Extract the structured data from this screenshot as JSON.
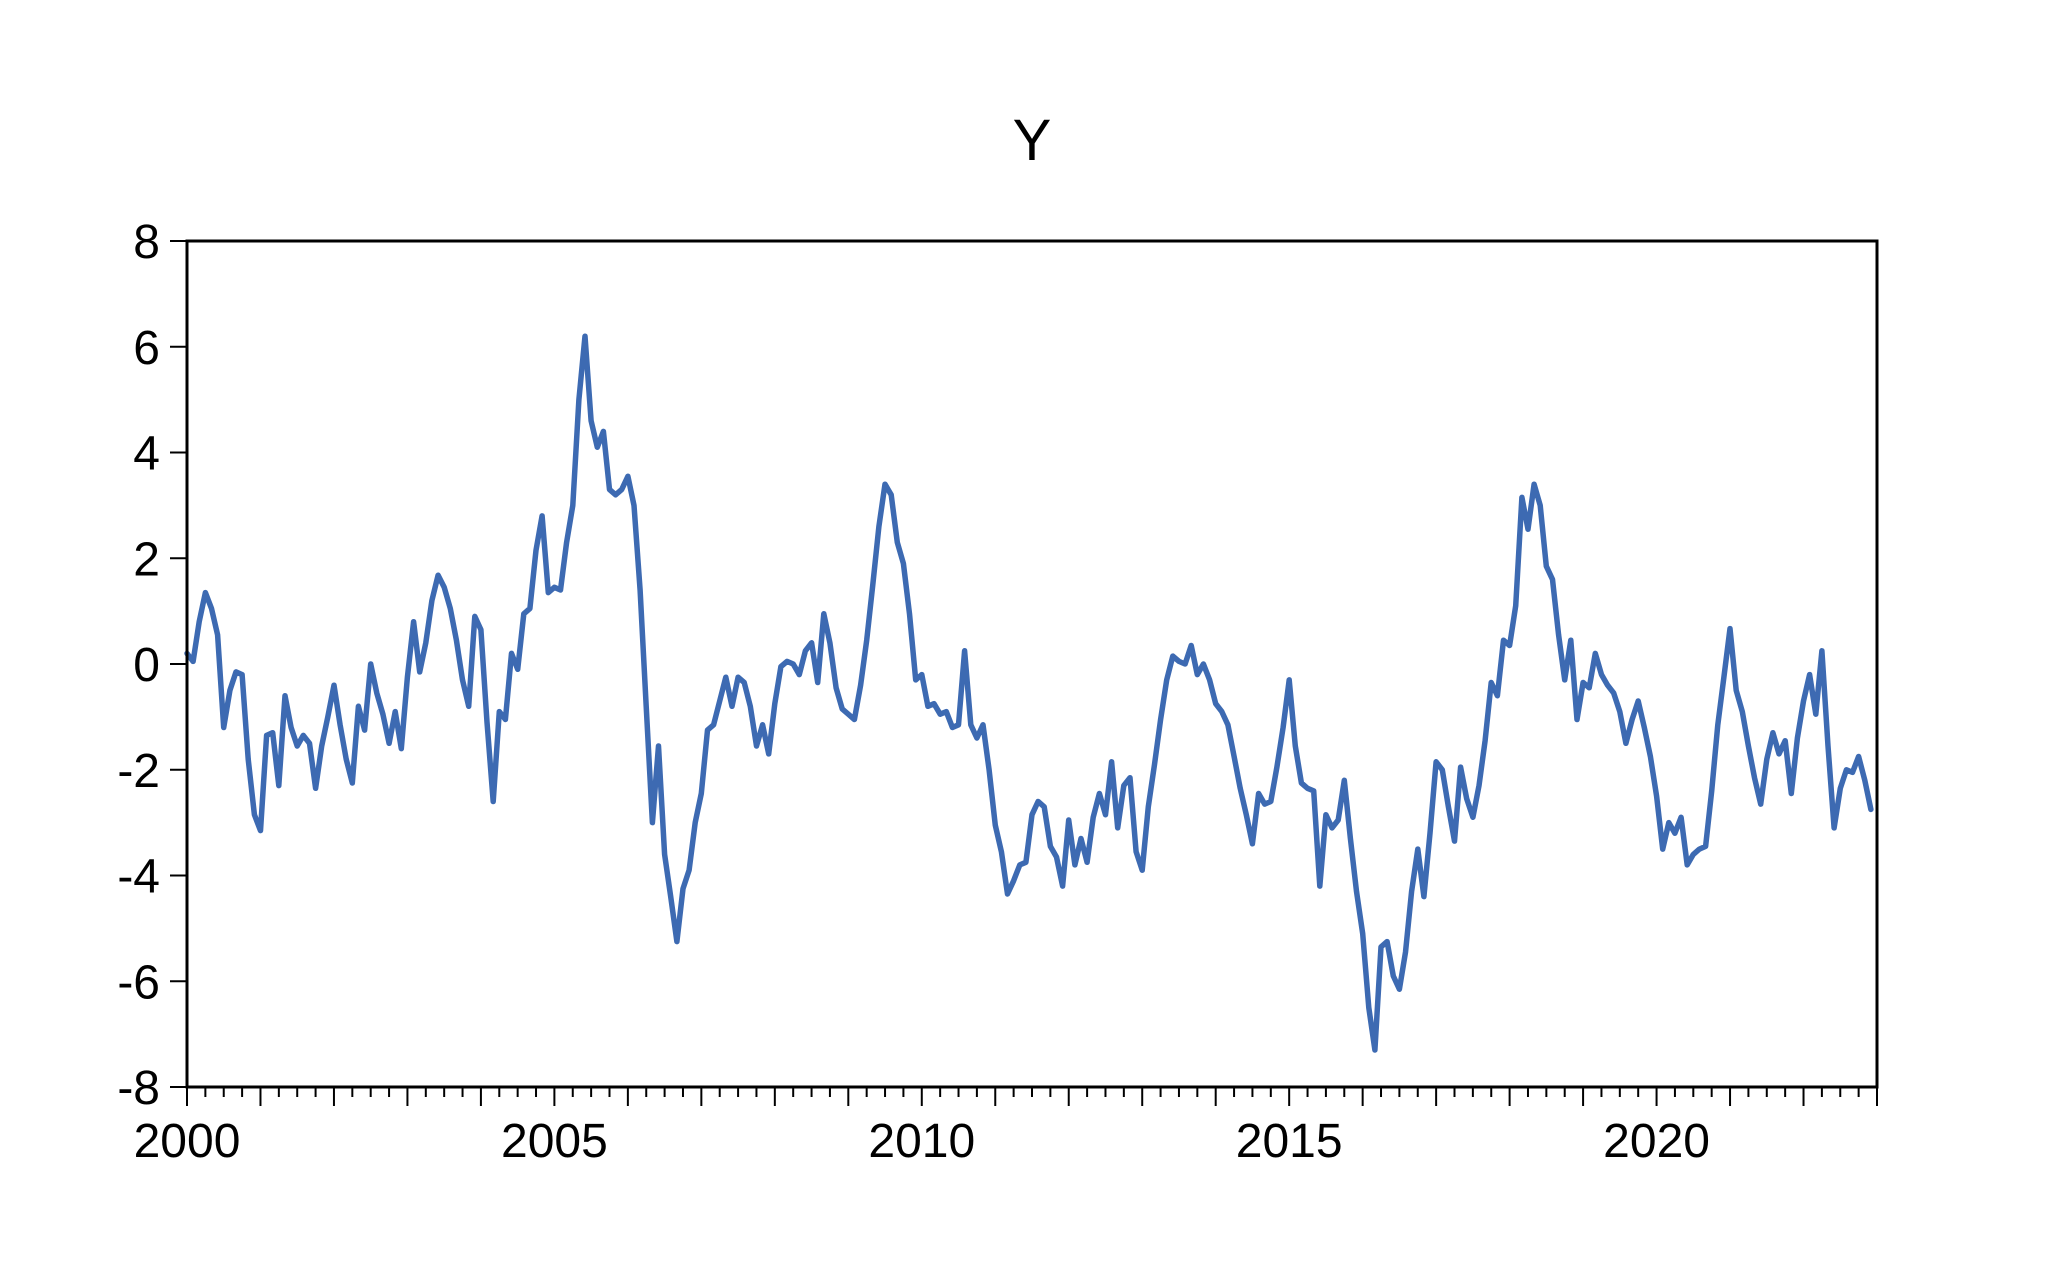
{
  "title": "Y",
  "chart_data": {
    "type": "line",
    "title": "Y",
    "series": [
      {
        "name": "Y",
        "color": "#3D6AB2",
        "values": [
          0.2,
          0.05,
          0.8,
          1.35,
          1.05,
          0.55,
          -1.2,
          -0.5,
          -0.15,
          -0.2,
          -1.8,
          -2.85,
          -3.15,
          -1.35,
          -1.3,
          -2.3,
          -0.6,
          -1.2,
          -1.55,
          -1.35,
          -1.5,
          -2.35,
          -1.55,
          -1.0,
          -0.4,
          -1.15,
          -1.8,
          -2.25,
          -0.8,
          -1.25,
          0.0,
          -0.55,
          -0.95,
          -1.5,
          -0.9,
          -1.6,
          -0.25,
          0.8,
          -0.15,
          0.4,
          1.2,
          1.68,
          1.45,
          1.05,
          0.45,
          -0.3,
          -0.8,
          0.9,
          0.65,
          -1.1,
          -2.6,
          -0.9,
          -1.05,
          0.2,
          -0.1,
          0.95,
          1.05,
          2.15,
          2.8,
          1.35,
          1.45,
          1.4,
          2.3,
          3.0,
          5.0,
          6.2,
          4.6,
          4.1,
          4.4,
          3.3,
          3.2,
          3.3,
          3.55,
          3.0,
          1.4,
          -0.8,
          -3.0,
          -1.55,
          -3.6,
          -4.4,
          -5.25,
          -4.25,
          -3.9,
          -3.0,
          -2.45,
          -1.25,
          -1.15,
          -0.7,
          -0.25,
          -0.8,
          -0.25,
          -0.35,
          -0.8,
          -1.55,
          -1.15,
          -1.7,
          -0.75,
          -0.05,
          0.05,
          0.0,
          -0.2,
          0.25,
          0.4,
          -0.35,
          0.95,
          0.4,
          -0.45,
          -0.85,
          -0.95,
          -1.05,
          -0.4,
          0.45,
          1.5,
          2.6,
          3.4,
          3.2,
          2.3,
          1.9,
          0.95,
          -0.3,
          -0.2,
          -0.8,
          -0.75,
          -0.95,
          -0.9,
          -1.2,
          -1.15,
          0.25,
          -1.15,
          -1.4,
          -1.15,
          -2.0,
          -3.05,
          -3.55,
          -4.35,
          -4.1,
          -3.8,
          -3.75,
          -2.85,
          -2.6,
          -2.7,
          -3.45,
          -3.65,
          -4.2,
          -2.95,
          -3.8,
          -3.3,
          -3.75,
          -2.9,
          -2.45,
          -2.85,
          -1.85,
          -3.1,
          -2.3,
          -2.15,
          -3.55,
          -3.9,
          -2.7,
          -1.9,
          -1.05,
          -0.3,
          0.15,
          0.05,
          0.0,
          0.35,
          -0.2,
          0.0,
          -0.3,
          -0.75,
          -0.9,
          -1.15,
          -1.75,
          -2.35,
          -2.85,
          -3.4,
          -2.45,
          -2.65,
          -2.6,
          -1.95,
          -1.2,
          -0.3,
          -1.55,
          -2.25,
          -2.35,
          -2.4,
          -4.2,
          -2.85,
          -3.1,
          -2.95,
          -2.2,
          -3.3,
          -4.3,
          -5.1,
          -6.5,
          -7.3,
          -5.35,
          -5.25,
          -5.9,
          -6.15,
          -5.45,
          -4.3,
          -3.5,
          -4.4,
          -3.2,
          -1.85,
          -2.0,
          -2.7,
          -3.35,
          -1.95,
          -2.55,
          -2.9,
          -2.3,
          -1.45,
          -0.35,
          -0.6,
          0.45,
          0.35,
          1.1,
          3.15,
          2.55,
          3.4,
          3.0,
          1.85,
          1.6,
          0.55,
          -0.3,
          0.45,
          -1.05,
          -0.35,
          -0.45,
          0.2,
          -0.2,
          -0.4,
          -0.55,
          -0.9,
          -1.5,
          -1.05,
          -0.7,
          -1.2,
          -1.75,
          -2.5,
          -3.5,
          -3.0,
          -3.2,
          -2.9,
          -3.8,
          -3.6,
          -3.5,
          -3.45,
          -2.4,
          -1.15,
          -0.25,
          0.67,
          -0.5,
          -0.9,
          -1.55,
          -2.15,
          -2.65,
          -1.8,
          -1.3,
          -1.7,
          -1.45,
          -2.45,
          -1.4,
          -0.7,
          -0.2,
          -0.95,
          0.25,
          -1.55,
          -3.1,
          -2.35,
          -2.0,
          -2.05,
          -1.75,
          -2.2,
          -2.75
        ]
      }
    ],
    "frequency": "monthly",
    "x_start_year": 2000,
    "x_end_year": 2023,
    "x_tick_years": [
      2000,
      2005,
      2010,
      2015,
      2020
    ],
    "x_tick_labels": [
      "2000",
      "2005",
      "2010",
      "2015",
      "2020"
    ],
    "y_ticks": [
      8,
      6,
      4,
      2,
      0,
      -2,
      -4,
      -6,
      -8
    ],
    "y_tick_labels": [
      "8",
      "6",
      "4",
      "2",
      "0",
      "-2",
      "-4",
      "-6",
      "-8"
    ],
    "ylim": [
      -8,
      8
    ],
    "grid": false,
    "legend_position": "none",
    "line_color": "#3D6AB2",
    "axis_color": "#000000",
    "background_color": "#ffffff"
  }
}
